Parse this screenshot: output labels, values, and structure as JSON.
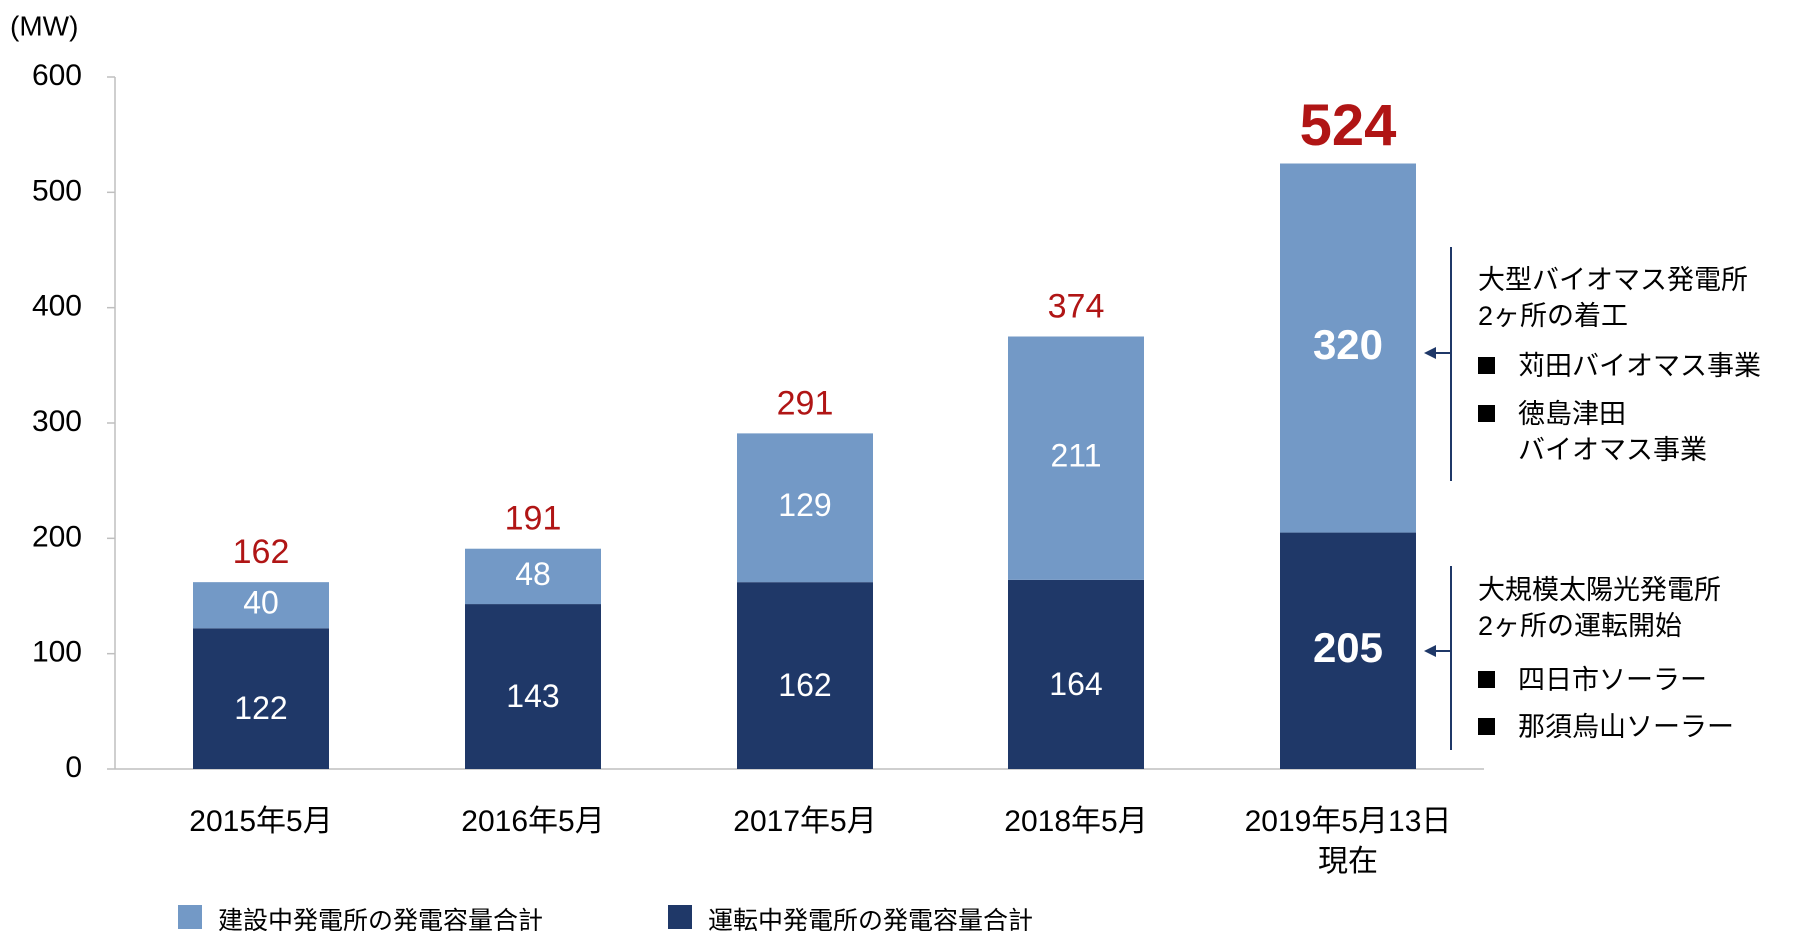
{
  "chart_data": {
    "type": "stacked_bar",
    "y_label": "(MW)",
    "categories": [
      "2015年5月",
      "2016年5月",
      "2017年5月",
      "2018年5月",
      "2019年5月13日\n現在"
    ],
    "series": [
      {
        "name": "運転中発電所の発電容量合計",
        "color": "#1f3868",
        "values": [
          122,
          143,
          162,
          164,
          205
        ]
      },
      {
        "name": "建設中発電所の発電容量合計",
        "color": "#7399c6",
        "values": [
          40,
          48,
          129,
          211,
          320
        ]
      }
    ],
    "totals": [
      162,
      191,
      291,
      374,
      524
    ],
    "ylim": [
      0,
      600
    ],
    "yticks": [
      0,
      100,
      200,
      300,
      400,
      500,
      600
    ],
    "annotations": [
      {
        "title": "大型バイオマス発電所\n2ヶ所の着工",
        "items": [
          "苅田バイオマス事業",
          "徳島津田\nバイオマス事業"
        ]
      },
      {
        "title": "大規模太陽光発電所\n2ヶ所の運転開始",
        "items": [
          "四日市ソーラー",
          "那須烏山ソーラー"
        ]
      }
    ]
  }
}
